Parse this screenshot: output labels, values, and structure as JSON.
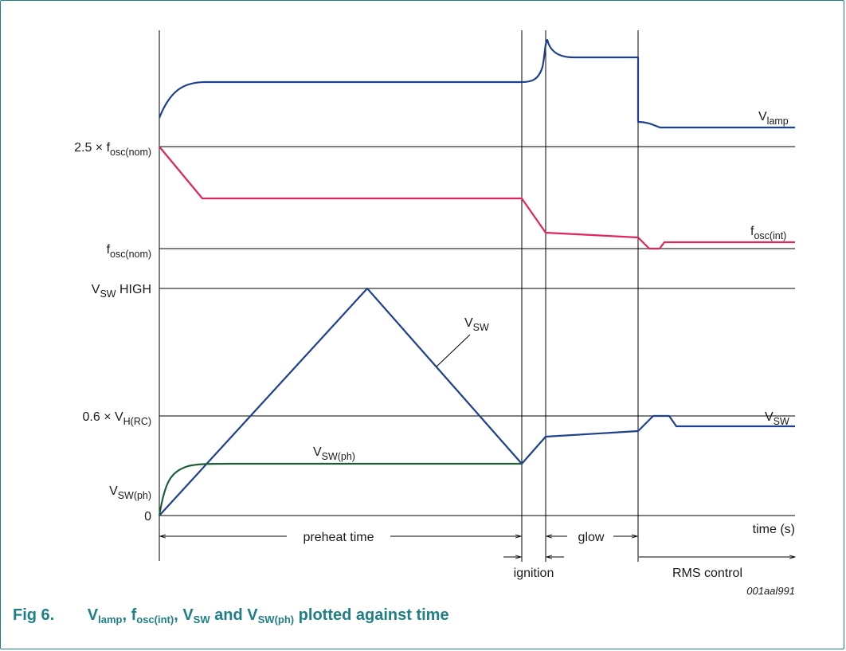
{
  "chart_data": {
    "type": "line",
    "figure_code": "001aal991",
    "y_levels": [
      {
        "id": "fosc25",
        "label": "2.5 × f",
        "sub": "osc(nom)"
      },
      {
        "id": "foscnom",
        "label": "f",
        "sub": "osc(nom)"
      },
      {
        "id": "vswhigh",
        "label": "V",
        "sub": "SW",
        "suffix": " HIGH"
      },
      {
        "id": "v06",
        "label": "0.6 × V",
        "sub": "H(RC)"
      },
      {
        "id": "vswph",
        "label": "V",
        "sub": "SW(ph)"
      },
      {
        "id": "zero",
        "label": "0",
        "sub": ""
      }
    ],
    "x_axis_label": "time (s)",
    "phases": [
      {
        "id": "preheat",
        "label": "preheat time"
      },
      {
        "id": "ignition",
        "label": "ignition"
      },
      {
        "id": "glow",
        "label": "glow"
      },
      {
        "id": "rms",
        "label": "RMS control"
      }
    ],
    "series": [
      {
        "id": "vlamp",
        "name": "V",
        "sub": "lamp",
        "color": "#1f3f8f"
      },
      {
        "id": "fosc",
        "name": "f",
        "sub": "osc(int)",
        "color": "#e0245e"
      },
      {
        "id": "vsw",
        "name": "V",
        "sub": "SW",
        "color": "#1f3f8f"
      },
      {
        "id": "vswph_curve",
        "name": "V",
        "sub": "SW(ph)",
        "color": "#1d5e3a"
      }
    ]
  },
  "caption": {
    "fig_number": "Fig 6.",
    "parts": [
      {
        "text": "V",
        "sub": "lamp"
      },
      {
        "text": ", f",
        "sub": "osc(int)"
      },
      {
        "text": ", V",
        "sub": "SW"
      },
      {
        "text": " and V",
        "sub": "SW(ph)"
      },
      {
        "text": " plotted against time",
        "sub": ""
      }
    ]
  },
  "colors": {
    "frame": "#1f7f86",
    "caption": "#1f7f86",
    "grid": "#000000"
  }
}
